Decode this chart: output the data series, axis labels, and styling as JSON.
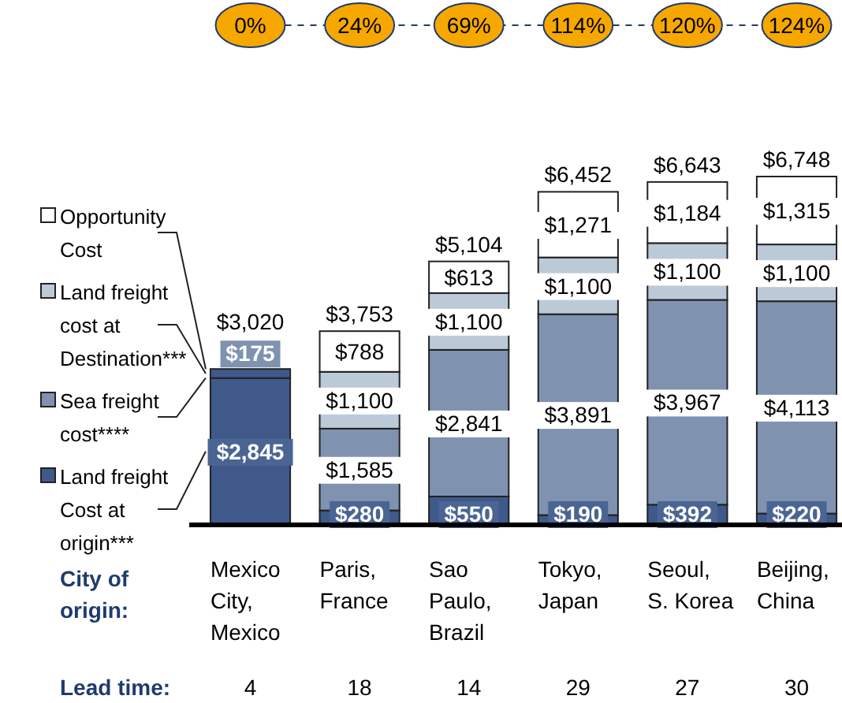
{
  "chart_data": {
    "type": "bar",
    "stacked": true,
    "legend": "left",
    "data_labels": false,
    "xlabel": "City of\norigin:",
    "categories": [
      "Mexico\nCity,\nMexico",
      "Paris,\nFrance",
      "Sao\nPaulo,\nBrazil",
      "Tokyo,\nJapan",
      "Seoul,\nS. Korea",
      "Beijing,\nChina"
    ],
    "series": [
      {
        "name": "Land freight\nCost at\norigin***",
        "color": "#3f5a8a",
        "values": [
          2845,
          280,
          550,
          190,
          392,
          220
        ],
        "value_labels": [
          "$2,845",
          "$280",
          "$550",
          "$190",
          "$392",
          "$220"
        ]
      },
      {
        "name": "Sea freight\ncost****",
        "color": "#7f93b0",
        "values": [
          null,
          1585,
          2841,
          3891,
          3967,
          4113
        ],
        "value_labels": [
          null,
          "$1,585",
          "$2,841",
          "$3,891",
          "$3,967",
          "$4,113"
        ]
      },
      {
        "name": "Land freight\ncost at\nDestination***",
        "color": "#bccad8",
        "colors": [
          "#3f5a8a",
          "#bccad8",
          "#bccad8",
          "#bccad8",
          "#bccad8",
          "#bccad8"
        ],
        "values": [
          175,
          1100,
          1100,
          1100,
          1100,
          1100
        ],
        "value_labels": [
          "$175",
          "$1,100",
          "$1,100",
          "$1,100",
          "$1,100",
          "$1,100"
        ]
      },
      {
        "name": "Opportunity\nCost",
        "color": "#ffffff",
        "values": [
          null,
          788,
          613,
          1271,
          1184,
          1315
        ],
        "value_labels": [
          null,
          "$788",
          "$613",
          "$1,271",
          "$1,184",
          "$1,315"
        ]
      }
    ],
    "totals": [
      "$3,020",
      "$3,753",
      "$5,104",
      "$6,452",
      "$6,643",
      "$6,748"
    ],
    "annotations": [
      "0%",
      "24%",
      "69%",
      "114%",
      "120%",
      "124%",
      "Lead time:",
      "4",
      "18",
      "14",
      "29",
      "27",
      "30"
    ]
  }
}
